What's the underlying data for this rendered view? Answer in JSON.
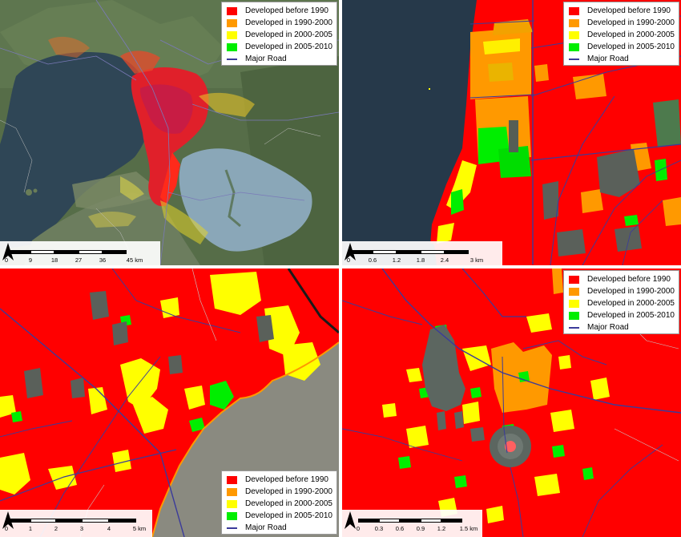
{
  "legend_items": [
    {
      "label": "Developed before 1990",
      "color": "#ff0000"
    },
    {
      "label": "Developed in 1990-2000",
      "color": "#ff9900"
    },
    {
      "label": "Developed in 2000-2005",
      "color": "#ffff00"
    },
    {
      "label": "Developed in 2005-2010",
      "color": "#00ee00"
    }
  ],
  "road_label": "Major Road",
  "road_color": "#3b3b9a",
  "water_color": "#26394a",
  "panels": [
    {
      "ticks": [
        "0",
        "9",
        "18",
        "27",
        "36",
        "45 km"
      ]
    },
    {
      "ticks": [
        "0",
        "0.6",
        "1.2",
        "1.8",
        "2.4",
        "3 km"
      ]
    },
    {
      "ticks": [
        "0",
        "1",
        "2",
        "3",
        "4",
        "5 km"
      ]
    },
    {
      "ticks": [
        "0",
        "0.3",
        "0.6",
        "0.9",
        "1.2",
        "1.5 km"
      ]
    }
  ]
}
